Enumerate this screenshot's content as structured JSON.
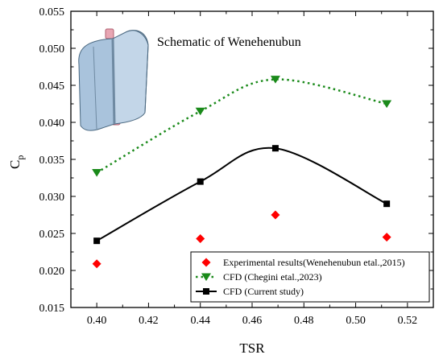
{
  "chart_data": {
    "type": "line",
    "xlabel": "TSR",
    "ylabel_main": "C",
    "ylabel_sub": "p",
    "xlim": [
      0.39,
      0.53
    ],
    "ylim": [
      0.015,
      0.055
    ],
    "xticks": [
      0.4,
      0.42,
      0.44,
      0.46,
      0.48,
      0.5,
      0.52
    ],
    "yticks": [
      0.015,
      0.02,
      0.025,
      0.03,
      0.035,
      0.04,
      0.045,
      0.05,
      0.055
    ],
    "grid": false,
    "legend_position": "bottom-right",
    "annotation": "Schematic of Wenehenubun",
    "series": [
      {
        "name": "Experimental results(Wenehenubun etal.,2015)",
        "style": "markers",
        "marker": "diamond",
        "color": "#ff0000",
        "x": [
          0.4,
          0.44,
          0.469,
          0.512
        ],
        "y": [
          0.0209,
          0.0243,
          0.0275,
          0.0245
        ]
      },
      {
        "name": "CFD (Chegini etal.,2023)",
        "style": "dotted-line",
        "marker": "triangle-down",
        "color": "#1a8a1a",
        "x": [
          0.4,
          0.44,
          0.469,
          0.512
        ],
        "y": [
          0.0332,
          0.0415,
          0.0458,
          0.0425
        ]
      },
      {
        "name": "CFD (Current study)",
        "style": "solid-line",
        "marker": "square",
        "color": "#000000",
        "x": [
          0.4,
          0.44,
          0.469,
          0.512
        ],
        "y": [
          0.024,
          0.032,
          0.0365,
          0.029
        ]
      }
    ]
  }
}
